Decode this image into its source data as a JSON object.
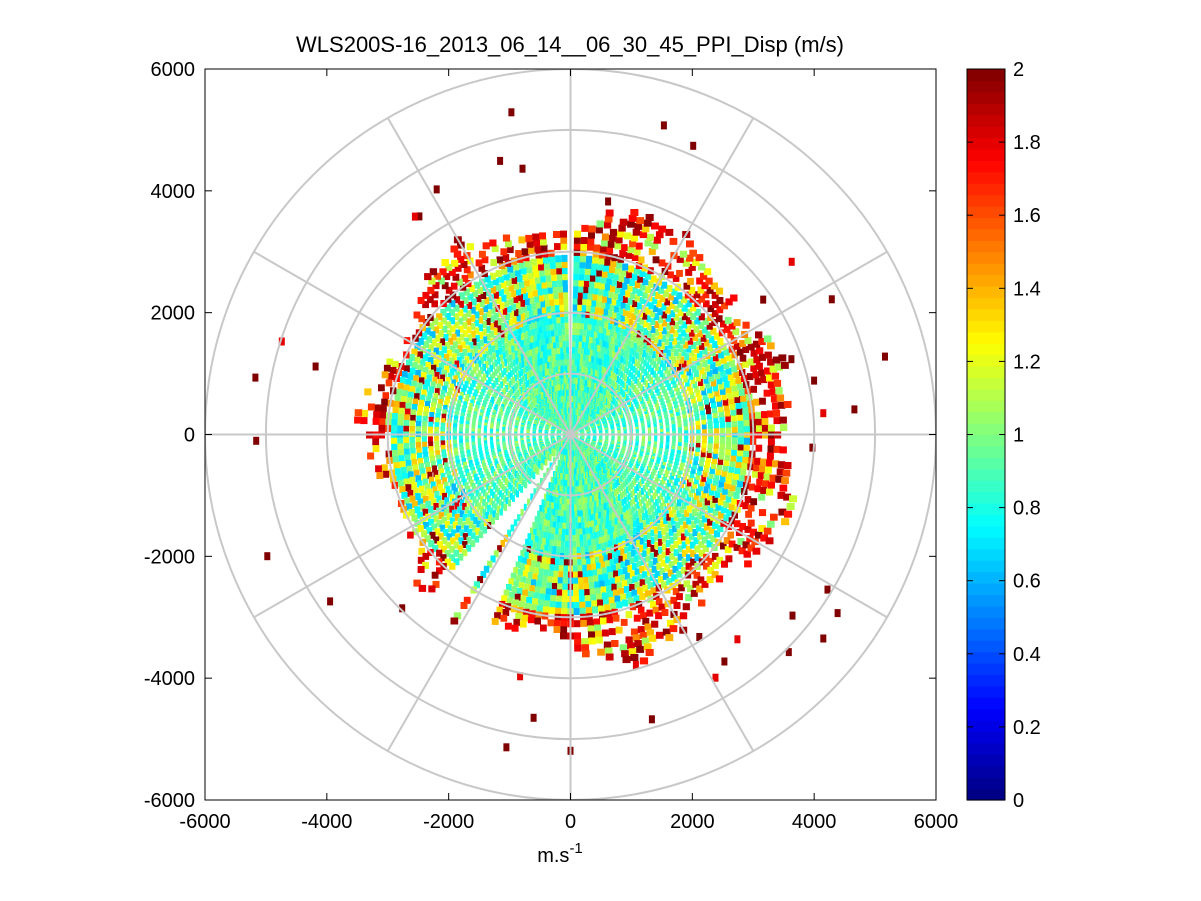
{
  "chart_data": {
    "type": "heatmap",
    "subtype": "polar-ppi-scan",
    "title": "WLS200S-16_2013_06_14__06_30_45_PPI_Disp (m/s)",
    "xlabel": "m.s",
    "xlabel_superscript": "-1",
    "ylabel": "",
    "xlim": [
      -6000,
      6000
    ],
    "ylim": [
      -6000,
      6000
    ],
    "xticks": [
      -6000,
      -4000,
      -2000,
      0,
      2000,
      4000,
      6000
    ],
    "xtick_labels": [
      "-6000",
      "-4000",
      "-2000",
      "0",
      "2000",
      "4000",
      "6000"
    ],
    "yticks": [
      6000,
      4000,
      2000,
      0,
      -2000,
      -4000,
      -6000
    ],
    "ytick_labels": [
      "6000",
      "4000",
      "2000",
      "0",
      "-2000",
      "-4000",
      "-6000"
    ],
    "polar_grid": {
      "rings": [
        1000,
        2000,
        3000,
        4000,
        5000,
        6000
      ],
      "spokes_deg": [
        0,
        30,
        60,
        90,
        120,
        150,
        180,
        210,
        240,
        270,
        300,
        330
      ]
    },
    "colorbar": {
      "colormap": "jet",
      "clim": [
        0,
        2
      ],
      "ticks": [
        0,
        0.2,
        0.4,
        0.6,
        0.8,
        1,
        1.2,
        1.4,
        1.6,
        1.8,
        2
      ],
      "tick_labels": [
        "0",
        "0.2",
        "0.4",
        "0.6",
        "0.8",
        "1",
        "1.2",
        "1.4",
        "1.6",
        "1.8",
        "2"
      ]
    },
    "data_description_values": {
      "inner_region_radius_max": 2000,
      "inner_region_value_range": [
        0.7,
        1.1
      ],
      "mid_region_radius_range": [
        2000,
        3000
      ],
      "mid_region_value_range": [
        0.6,
        1.4
      ],
      "outer_ring_radius_range": [
        3000,
        4000
      ],
      "outer_ring_value_range": [
        1.6,
        2
      ],
      "outlier_radius_max": 5600,
      "gap_sectors_deg": [
        [
          89,
          91
        ],
        [
          230,
          236
        ],
        [
          240,
          246
        ]
      ],
      "range_bins_m": 100,
      "azimuth_step_deg": 2
    }
  }
}
